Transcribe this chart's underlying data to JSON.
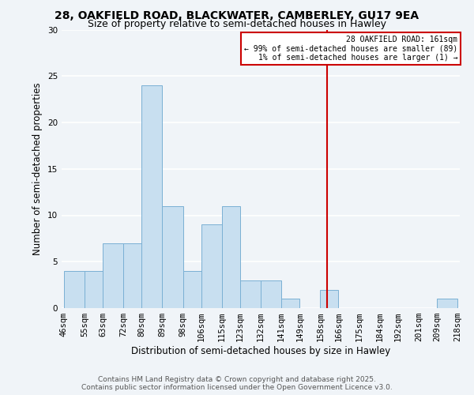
{
  "title": "28, OAKFIELD ROAD, BLACKWATER, CAMBERLEY, GU17 9EA",
  "subtitle": "Size of property relative to semi-detached houses in Hawley",
  "xlabel": "Distribution of semi-detached houses by size in Hawley",
  "ylabel": "Number of semi-detached properties",
  "bin_edges": [
    46,
    55,
    63,
    72,
    80,
    89,
    98,
    106,
    115,
    123,
    132,
    141,
    149,
    158,
    166,
    175,
    184,
    192,
    201,
    209,
    218
  ],
  "bin_labels": [
    "46sqm",
    "55sqm",
    "63sqm",
    "72sqm",
    "80sqm",
    "89sqm",
    "98sqm",
    "106sqm",
    "115sqm",
    "123sqm",
    "132sqm",
    "141sqm",
    "149sqm",
    "158sqm",
    "166sqm",
    "175sqm",
    "184sqm",
    "192sqm",
    "201sqm",
    "209sqm",
    "218sqm"
  ],
  "counts": [
    4,
    4,
    7,
    7,
    24,
    11,
    4,
    9,
    11,
    3,
    3,
    1,
    0,
    2,
    0,
    0,
    0,
    0,
    0,
    1
  ],
  "bar_color": "#c8dff0",
  "bar_edge_color": "#7ab0d4",
  "vline_x": 161,
  "vline_color": "#cc0000",
  "ylim": [
    0,
    30
  ],
  "yticks": [
    0,
    5,
    10,
    15,
    20,
    25,
    30
  ],
  "legend_title": "28 OAKFIELD ROAD: 161sqm",
  "legend_line1": "← 99% of semi-detached houses are smaller (89)",
  "legend_line2": "1% of semi-detached houses are larger (1) →",
  "legend_box_color": "#cc0000",
  "footer_line1": "Contains HM Land Registry data © Crown copyright and database right 2025.",
  "footer_line2": "Contains public sector information licensed under the Open Government Licence v3.0.",
  "background_color": "#f0f4f8",
  "grid_color": "#ffffff",
  "title_fontsize": 10,
  "subtitle_fontsize": 9,
  "axis_label_fontsize": 8.5,
  "tick_fontsize": 7.5,
  "footer_fontsize": 6.5
}
